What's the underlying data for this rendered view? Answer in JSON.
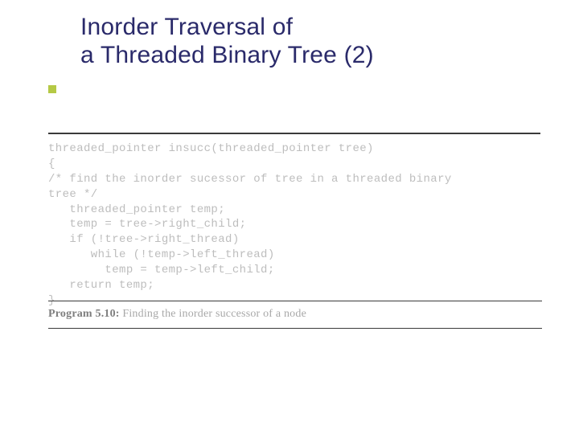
{
  "title_line1": "Inorder Traversal of",
  "title_line2": " a Threaded Binary Tree (2)",
  "divider_color": "#3a3a3a",
  "bullet_color": "#b5c945",
  "heading_color": "#2a2a6a",
  "code_text_color": "#bdbdbd",
  "caption_text_color": "#a8a8a8",
  "caption_bold_color": "#7e7e7e",
  "code_font_size_pt": 10.5,
  "title_font_size_pt": 22,
  "code": {
    "l1": "threaded_pointer insucc(threaded_pointer tree)",
    "l2": "{",
    "l3": "/* find the inorder sucessor of tree in a threaded binary",
    "l4": "tree */",
    "l5": "   threaded_pointer temp;",
    "l6": "   temp = tree->right_child;",
    "l7": "   if (!tree->right_thread)",
    "l8": "      while (!temp->left_thread)",
    "l9": "        temp = temp->left_child;",
    "l10": "   return temp;",
    "l11": "}"
  },
  "caption_bold": "Program 5.10:",
  "caption_rest": " Finding the inorder successor of a node"
}
